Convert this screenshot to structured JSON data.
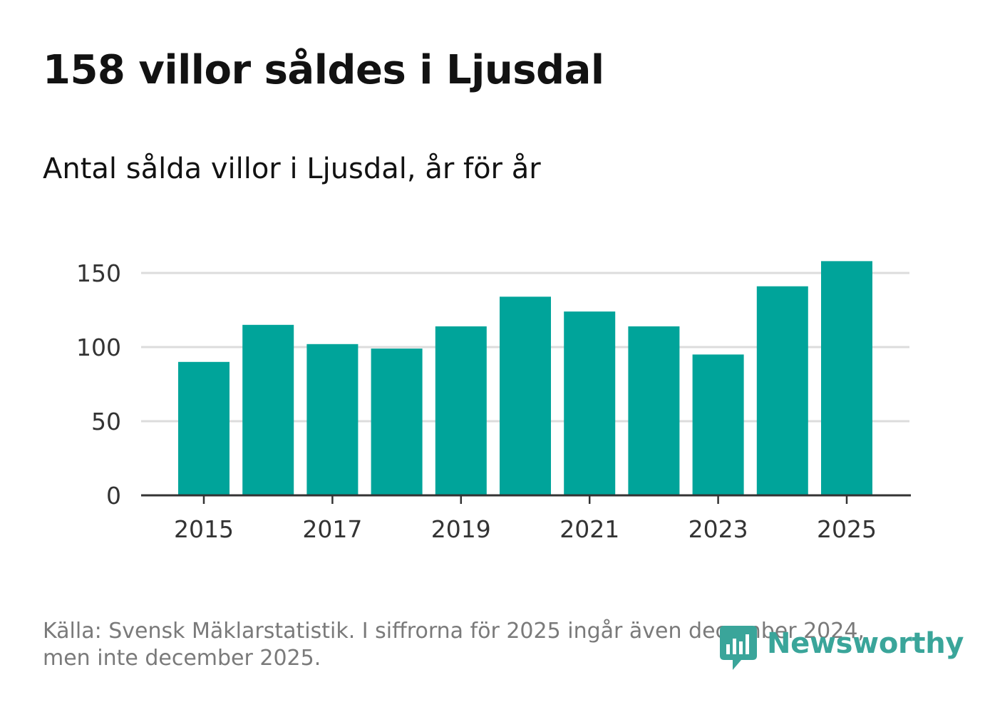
{
  "header": {
    "title": "158 villor såldes i Ljusdal",
    "subtitle": "Antal sålda villor i Ljusdal, år för år"
  },
  "footer": {
    "source": "Källa: Svensk Mäklarstatistik. I siffrorna för 2025 ingår även december 2024, men inte december 2025.",
    "brand": "Newsworthy",
    "brand_icon": "newsworthy-logo-icon"
  },
  "colors": {
    "bar": "#00a49a",
    "grid": "#dcdcdc",
    "axis": "#333333",
    "brand": "#3aa59a"
  },
  "chart_data": {
    "type": "bar",
    "title": "Antal sålda villor i Ljusdal, år för år",
    "xlabel": "",
    "ylabel": "",
    "categories": [
      "2015",
      "2016",
      "2017",
      "2018",
      "2019",
      "2020",
      "2021",
      "2022",
      "2023",
      "2024",
      "2025"
    ],
    "values": [
      90,
      115,
      102,
      99,
      114,
      134,
      124,
      114,
      95,
      141,
      158
    ],
    "xticks": [
      "2015",
      "2017",
      "2019",
      "2021",
      "2023",
      "2025"
    ],
    "yticks": [
      0,
      50,
      100,
      150
    ],
    "ylim": [
      0,
      158
    ],
    "grid": true
  }
}
